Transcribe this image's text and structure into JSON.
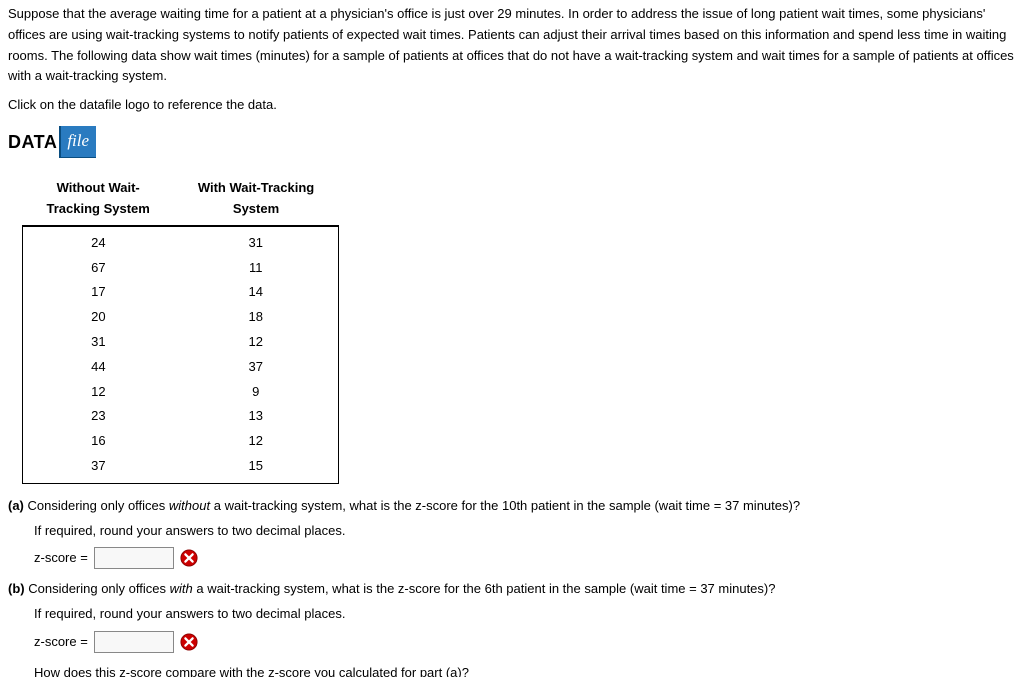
{
  "intro": "Suppose that the average waiting time for a patient at a physician's office is just over 29 minutes. In order to address the issue of long patient wait times, some physicians' offices are using wait-tracking systems to notify patients of expected wait times. Patients can adjust their arrival times based on this information and spend less time in waiting rooms. The following data show wait times (minutes) for a sample of patients at offices that do not have a wait-tracking system and wait times for a sample of patients at offices with a wait-tracking system.",
  "datafile_prompt": "Click on the datafile logo to reference the data.",
  "logo": {
    "data": "DATA",
    "file": "file"
  },
  "table": {
    "header_without_l1": "Without Wait-",
    "header_without_l2": "Tracking System",
    "header_with_l1": "With Wait-Tracking",
    "header_with_l2": "System",
    "rows": [
      {
        "without": "24",
        "with": "31"
      },
      {
        "without": "67",
        "with": "11"
      },
      {
        "without": "17",
        "with": "14"
      },
      {
        "without": "20",
        "with": "18"
      },
      {
        "without": "31",
        "with": "12"
      },
      {
        "without": "44",
        "with": "37"
      },
      {
        "without": "12",
        "with": "9"
      },
      {
        "without": "23",
        "with": "13"
      },
      {
        "without": "16",
        "with": "12"
      },
      {
        "without": "37",
        "with": "15"
      }
    ]
  },
  "qa": {
    "label": "(a)",
    "text_pre": " Considering only offices ",
    "text_em": "without",
    "text_post": " a wait-tracking system, what is the z-score for the 10th patient in the sample (wait time = 37 minutes)?",
    "round_note": "If required, round your answers to two decimal places.",
    "answer_label": "z-score = "
  },
  "qb": {
    "label": "(b)",
    "text_pre": " Considering only offices ",
    "text_em": "with",
    "text_post": " a wait-tracking system, what is the z-score for the 6th patient in the sample (wait time = 37 minutes)?",
    "round_note": "If required, round your answers to two decimal places.",
    "answer_label": "z-score = ",
    "compare_text": "How does this z-score compare with the z-score you calculated for part (a)?"
  },
  "colors": {
    "logo_blue": "#2a7bc0",
    "wrong_red": "#cc0000"
  }
}
